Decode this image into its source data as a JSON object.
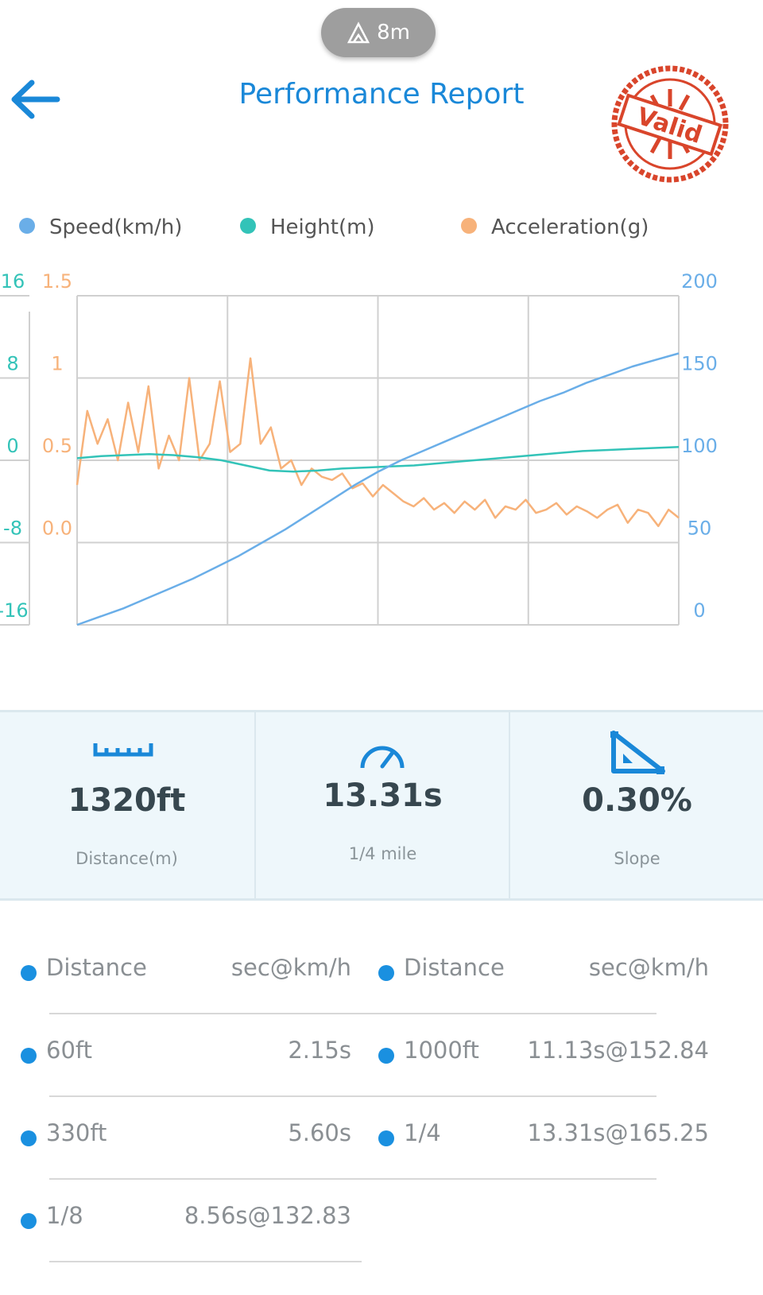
{
  "status_pill": "8m",
  "header": {
    "title": "Performance Report",
    "stamp": "Valid"
  },
  "chart_data": {
    "type": "line",
    "series": [
      {
        "name": "Speed(km/h)",
        "color": "#6aaee8",
        "axis": "y2",
        "values": [
          0,
          5,
          10,
          16,
          22,
          28,
          35,
          42,
          50,
          58,
          67,
          76,
          85,
          93,
          100,
          106,
          112,
          118,
          124,
          130,
          136,
          141,
          147,
          152,
          157,
          161,
          165
        ]
      },
      {
        "name": "Height(m)",
        "color": "#33c3b8",
        "axis": "y",
        "values": [
          0.2,
          0.4,
          0.5,
          0.6,
          0.5,
          0.3,
          0.0,
          -0.5,
          -1.0,
          -1.1,
          -1.0,
          -0.8,
          -0.7,
          -0.6,
          -0.5,
          -0.3,
          -0.1,
          0.1,
          0.3,
          0.5,
          0.7,
          0.9,
          1.0,
          1.1,
          1.2,
          1.3
        ]
      },
      {
        "name": "Acceleration(g)",
        "color": "#f7b27a",
        "axis": "y3",
        "values": [
          0.35,
          0.8,
          0.6,
          0.75,
          0.5,
          0.85,
          0.55,
          0.95,
          0.45,
          0.65,
          0.5,
          1.0,
          0.5,
          0.6,
          0.98,
          0.55,
          0.6,
          1.12,
          0.6,
          0.7,
          0.45,
          0.5,
          0.35,
          0.45,
          0.4,
          0.38,
          0.42,
          0.33,
          0.36,
          0.28,
          0.35,
          0.3,
          0.25,
          0.22,
          0.27,
          0.2,
          0.24,
          0.18,
          0.25,
          0.2,
          0.26,
          0.15,
          0.22,
          0.2,
          0.26,
          0.18,
          0.2,
          0.24,
          0.17,
          0.22,
          0.19,
          0.15,
          0.2,
          0.23,
          0.12,
          0.2,
          0.18,
          0.1,
          0.2,
          0.15
        ]
      }
    ],
    "ylim": [
      -16,
      16
    ],
    "yticks": [
      16,
      8,
      0,
      -8,
      -16
    ],
    "y3lim": [
      -0.5,
      1.5
    ],
    "y3ticks": [
      1.5,
      1,
      0.5,
      {
        "value": 0,
        "label": "0.0"
      }
    ],
    "y2lim": [
      0,
      200
    ],
    "y2ticks": [
      200,
      150,
      100,
      50,
      0
    ],
    "grid": true
  },
  "stats": [
    {
      "value": "1320ft",
      "label": "Distance(m)"
    },
    {
      "value": "13.31s",
      "label": "1/4 mile"
    },
    {
      "value": "0.30%",
      "label": "Slope"
    }
  ],
  "splits": {
    "left": {
      "header": [
        "Distance",
        "sec@km/h"
      ],
      "rows": [
        [
          "60ft",
          "2.15s"
        ],
        [
          "330ft",
          "5.60s"
        ],
        [
          "1/8",
          "8.56s@132.83"
        ]
      ]
    },
    "right": {
      "header": [
        "Distance",
        "sec@km/h"
      ],
      "rows": [
        [
          "1000ft",
          "11.13s@152.84"
        ],
        [
          "1/4",
          "13.31s@165.25"
        ]
      ]
    }
  }
}
